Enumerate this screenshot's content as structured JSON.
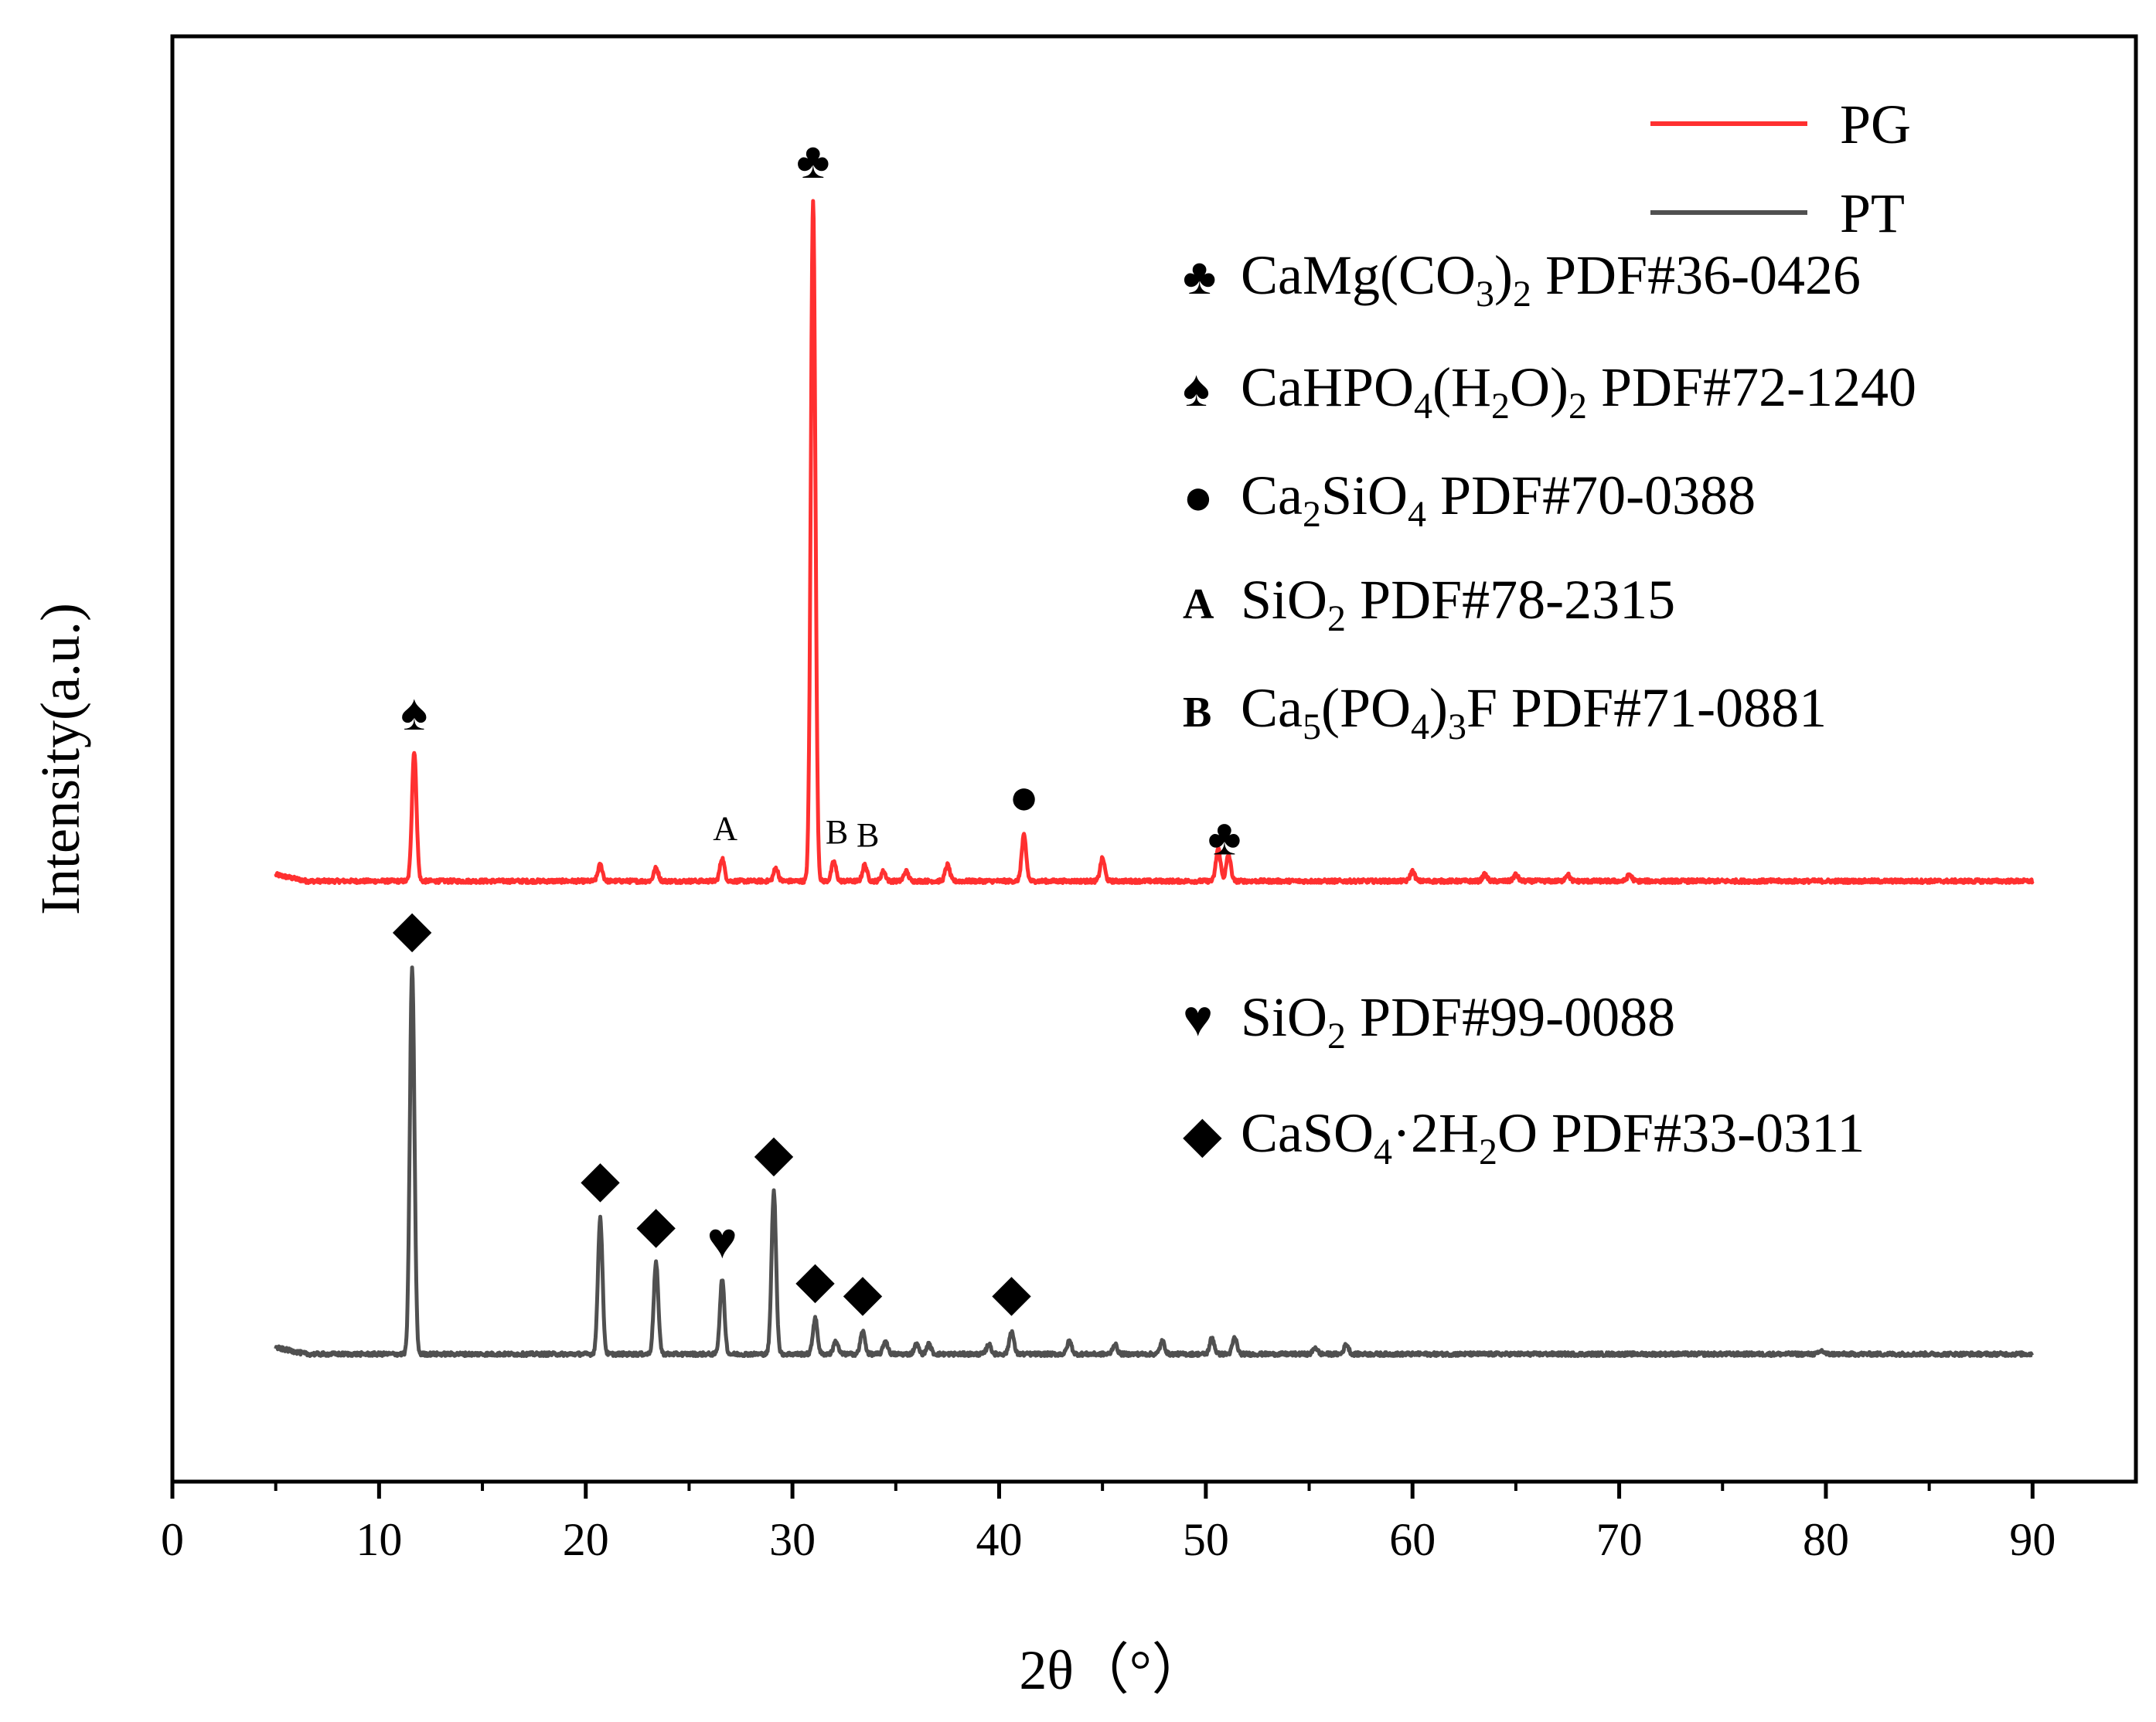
{
  "chart_data": {
    "type": "line",
    "xlabel": "2θ（°）",
    "ylabel": "Intensity(a.u.)",
    "xlim": [
      0,
      95
    ],
    "x_ticks": [
      0,
      10,
      20,
      30,
      40,
      50,
      60,
      70,
      80,
      90
    ],
    "y_ticks_shown": false,
    "grid": false,
    "legend_position": "top-right",
    "series": [
      {
        "name": "PG",
        "color": "#ff3030",
        "baseline": 0,
        "peaks": [
          [
            11.7,
            0.4
          ],
          [
            20.7,
            0.05
          ],
          [
            23.4,
            0.04
          ],
          [
            26.6,
            0.07
          ],
          [
            29.2,
            0.04
          ],
          [
            31.0,
            2.1
          ],
          [
            32.0,
            0.06
          ],
          [
            33.5,
            0.05
          ],
          [
            34.4,
            0.03
          ],
          [
            35.5,
            0.03
          ],
          [
            37.5,
            0.05
          ],
          [
            41.2,
            0.14
          ],
          [
            45.0,
            0.07
          ],
          [
            50.6,
            0.1
          ],
          [
            51.1,
            0.08
          ],
          [
            60.0,
            0.03
          ],
          [
            63.5,
            0.02
          ],
          [
            65.0,
            0.02
          ],
          [
            67.5,
            0.02
          ],
          [
            70.5,
            0.02
          ]
        ]
      },
      {
        "name": "PT",
        "color": "#505050",
        "baseline": 0,
        "peaks": [
          [
            11.6,
            1.19
          ],
          [
            20.7,
            0.42
          ],
          [
            23.4,
            0.28
          ],
          [
            26.6,
            0.23
          ],
          [
            29.1,
            0.5
          ],
          [
            31.1,
            0.11
          ],
          [
            32.1,
            0.04
          ],
          [
            33.4,
            0.07
          ],
          [
            34.5,
            0.04
          ],
          [
            36.0,
            0.03
          ],
          [
            36.6,
            0.03
          ],
          [
            39.5,
            0.03
          ],
          [
            40.6,
            0.07
          ],
          [
            43.4,
            0.04
          ],
          [
            45.6,
            0.03
          ],
          [
            47.9,
            0.04
          ],
          [
            50.3,
            0.05
          ],
          [
            51.4,
            0.05
          ],
          [
            55.3,
            0.02
          ],
          [
            56.8,
            0.03
          ],
          [
            79.8,
            0.01
          ]
        ]
      }
    ],
    "peak_markers": [
      {
        "symbol": "♣",
        "series": "PG",
        "x": 31.0
      },
      {
        "symbol": "♠",
        "series": "PG",
        "x": 11.7
      },
      {
        "symbol": "A",
        "series": "PG",
        "x": 26.6
      },
      {
        "symbol": "B",
        "series": "PG",
        "x": 32.0
      },
      {
        "symbol": "B",
        "series": "PG",
        "x": 33.5
      },
      {
        "symbol": "●",
        "series": "PG",
        "x": 41.2
      },
      {
        "symbol": "♣",
        "series": "PG",
        "x": 50.9
      },
      {
        "symbol": "◆",
        "series": "PT",
        "x": 11.6
      },
      {
        "symbol": "◆",
        "series": "PT",
        "x": 20.7
      },
      {
        "symbol": "◆",
        "series": "PT",
        "x": 23.4
      },
      {
        "symbol": "♥",
        "series": "PT",
        "x": 26.6
      },
      {
        "symbol": "◆",
        "series": "PT",
        "x": 29.1
      },
      {
        "symbol": "◆",
        "series": "PT",
        "x": 31.1
      },
      {
        "symbol": "◆",
        "series": "PT",
        "x": 33.4
      },
      {
        "symbol": "◆",
        "series": "PT",
        "x": 40.6
      }
    ],
    "phase_legend": [
      {
        "symbol": "♣",
        "formula": [
          [
            "CaMg(CO",
            ""
          ],
          [
            "3",
            "sub"
          ],
          [
            ")",
            ""
          ],
          [
            "2",
            "sub"
          ],
          [
            " PDF#36-0426",
            ""
          ]
        ]
      },
      {
        "symbol": "♠",
        "formula": [
          [
            "CaHPO",
            ""
          ],
          [
            "4",
            "sub"
          ],
          [
            "(H",
            ""
          ],
          [
            "2",
            "sub"
          ],
          [
            "O)",
            ""
          ],
          [
            "2",
            "sub"
          ],
          [
            " PDF#72-1240",
            ""
          ]
        ]
      },
      {
        "symbol": "●",
        "formula": [
          [
            "Ca",
            ""
          ],
          [
            "2",
            "sub"
          ],
          [
            "SiO",
            ""
          ],
          [
            "4",
            "sub"
          ],
          [
            " PDF#70-0388",
            ""
          ]
        ]
      },
      {
        "symbol": "A",
        "formula": [
          [
            "SiO",
            ""
          ],
          [
            "2",
            "sub"
          ],
          [
            " PDF#78-2315",
            ""
          ]
        ]
      },
      {
        "symbol": "B",
        "formula": [
          [
            "Ca",
            ""
          ],
          [
            "5",
            "sub"
          ],
          [
            "(PO",
            ""
          ],
          [
            "4",
            "sub"
          ],
          [
            ")",
            ""
          ],
          [
            "3",
            "sub"
          ],
          [
            "F PDF#71-0881",
            ""
          ]
        ]
      },
      {
        "symbol": "♥",
        "formula": [
          [
            "SiO",
            ""
          ],
          [
            "2",
            "sub"
          ],
          [
            " PDF#99-0088",
            ""
          ]
        ]
      },
      {
        "symbol": "◆",
        "formula": [
          [
            "CaSO",
            ""
          ],
          [
            "4",
            "sub"
          ],
          [
            "·2H",
            ""
          ],
          [
            "2",
            "sub"
          ],
          [
            "O PDF#33-0311",
            ""
          ]
        ]
      }
    ]
  }
}
